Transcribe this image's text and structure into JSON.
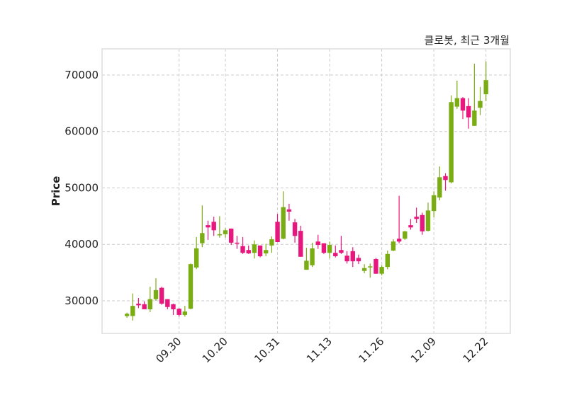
{
  "chart_data": {
    "type": "candlestick",
    "title": "클로봇, 최근 3개월",
    "xlabel": "",
    "ylabel": "Price",
    "ylim": [
      24230,
      74640
    ],
    "xlim": [
      -4.3,
      66.2
    ],
    "grid": true,
    "yticks": [
      30000,
      40000,
      50000,
      60000,
      70000
    ],
    "xticks": [
      {
        "index": 9,
        "label": "09.30"
      },
      {
        "index": 17,
        "label": "10.20"
      },
      {
        "index": 26,
        "label": "10.31"
      },
      {
        "index": 35,
        "label": "11.13"
      },
      {
        "index": 44,
        "label": "11.26"
      },
      {
        "index": 53,
        "label": "12.09"
      },
      {
        "index": 62,
        "label": "12.22"
      }
    ],
    "colors": {
      "up": "#7aac14",
      "down": "#e8177d",
      "grid": "#cccccc",
      "frame": "#dddddd"
    },
    "candles_ohlc": [
      [
        27300,
        27900,
        27000,
        27700
      ],
      [
        27300,
        31300,
        26500,
        29100
      ],
      [
        29500,
        30500,
        28700,
        29200
      ],
      [
        29400,
        29900,
        28500,
        28500
      ],
      [
        28500,
        32500,
        28000,
        30300
      ],
      [
        30300,
        34000,
        30000,
        31900
      ],
      [
        32300,
        32500,
        29300,
        29500
      ],
      [
        30300,
        30300,
        28500,
        28900
      ],
      [
        29400,
        29500,
        27500,
        28500
      ],
      [
        28600,
        28700,
        27200,
        27500
      ],
      [
        27500,
        29100,
        27200,
        28100
      ],
      [
        28600,
        36600,
        28500,
        36500
      ],
      [
        35900,
        41300,
        35600,
        39300
      ],
      [
        40200,
        46900,
        39500,
        42000
      ],
      [
        43400,
        44200,
        40800,
        43000
      ],
      [
        44000,
        44900,
        41500,
        42500
      ],
      [
        41600,
        45000,
        41200,
        41800
      ],
      [
        41800,
        42900,
        41200,
        42500
      ],
      [
        42800,
        42800,
        39900,
        40300
      ],
      [
        40300,
        41500,
        39200,
        40200
      ],
      [
        39700,
        41300,
        38300,
        38500
      ],
      [
        39000,
        39800,
        38300,
        38400
      ],
      [
        38500,
        40700,
        37500,
        40000
      ],
      [
        39800,
        39800,
        37700,
        37900
      ],
      [
        38400,
        40100,
        37900,
        39000
      ],
      [
        39800,
        41400,
        38500,
        40900
      ],
      [
        44000,
        45400,
        40400,
        40400
      ],
      [
        41000,
        49400,
        40900,
        46600
      ],
      [
        46200,
        47200,
        44200,
        45800
      ],
      [
        43900,
        44500,
        40300,
        41500
      ],
      [
        42400,
        43300,
        37800,
        37800
      ],
      [
        35500,
        39400,
        35500,
        37100
      ],
      [
        36300,
        40300,
        36000,
        39300
      ],
      [
        40500,
        41700,
        39200,
        39900
      ],
      [
        40200,
        40200,
        38300,
        38500
      ],
      [
        38500,
        40500,
        37500,
        39900
      ],
      [
        38500,
        39800,
        37700,
        37900
      ],
      [
        39000,
        41500,
        38300,
        38500
      ],
      [
        38000,
        38800,
        36600,
        37000
      ],
      [
        38800,
        39500,
        36000,
        37000
      ],
      [
        37600,
        38200,
        36500,
        37000
      ],
      [
        35300,
        36500,
        34900,
        35800
      ],
      [
        36000,
        36600,
        34100,
        36100
      ],
      [
        37400,
        37600,
        34800,
        34800
      ],
      [
        34800,
        36300,
        34500,
        36000
      ],
      [
        36000,
        38900,
        35600,
        38300
      ],
      [
        38900,
        40900,
        38800,
        40500
      ],
      [
        41000,
        48600,
        40200,
        40500
      ],
      [
        41000,
        42400,
        40800,
        42300
      ],
      [
        43400,
        44500,
        42600,
        43000
      ],
      [
        44900,
        46500,
        43800,
        44500
      ],
      [
        45200,
        45600,
        41700,
        42300
      ],
      [
        42400,
        47400,
        42300,
        46000
      ],
      [
        45900,
        49400,
        44800,
        48700
      ],
      [
        48300,
        53800,
        47800,
        51900
      ],
      [
        52100,
        52600,
        49500,
        51400
      ],
      [
        51000,
        66400,
        50800,
        65200
      ],
      [
        64400,
        69000,
        64000,
        65900
      ],
      [
        65900,
        66100,
        62200,
        63700
      ],
      [
        64500,
        65900,
        60500,
        62500
      ],
      [
        61000,
        72000,
        61000,
        63700
      ],
      [
        64200,
        67900,
        62900,
        65400
      ],
      [
        66600,
        72400,
        65400,
        69100
      ]
    ]
  }
}
